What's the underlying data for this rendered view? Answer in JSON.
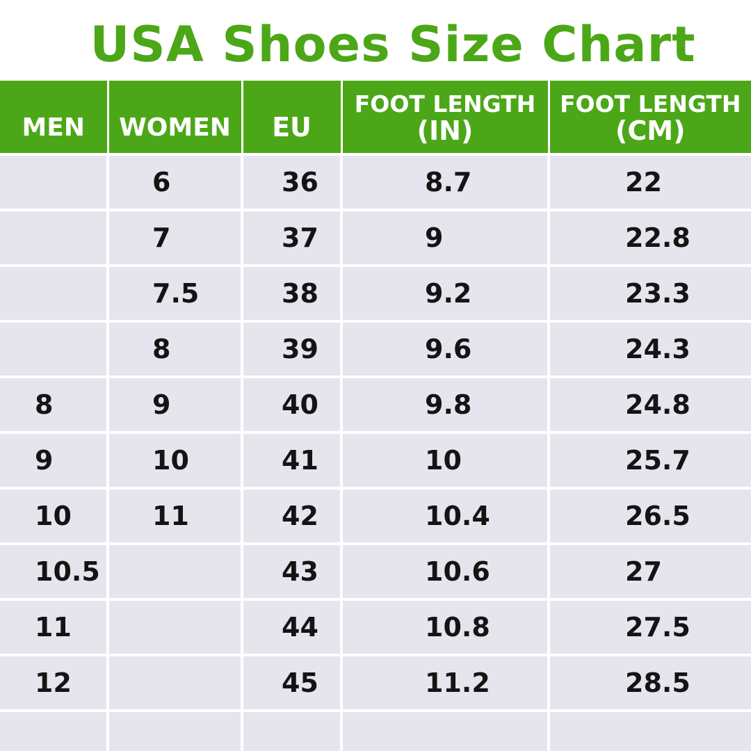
{
  "title": "USA Shoes Size Chart",
  "colors": {
    "accent": "#4ba717",
    "row_background": "#e6e5ee",
    "text": "#141414"
  },
  "table": {
    "headers": {
      "men": "MEN",
      "women": "WOMEN",
      "eu": "EU",
      "foot_length_in": {
        "line1": "FOOT LENGTH",
        "line2": "(IN)"
      },
      "foot_length_cm": {
        "line1": "FOOT LENGTH",
        "line2": "(CM)"
      }
    },
    "rows": [
      {
        "men": "",
        "women": "6",
        "eu": "36",
        "in": "8.7",
        "cm": "22"
      },
      {
        "men": "",
        "women": "7",
        "eu": "37",
        "in": "9",
        "cm": "22.8"
      },
      {
        "men": "",
        "women": "7.5",
        "eu": "38",
        "in": "9.2",
        "cm": "23.3"
      },
      {
        "men": "",
        "women": "8",
        "eu": "39",
        "in": "9.6",
        "cm": "24.3"
      },
      {
        "men": "8",
        "women": "9",
        "eu": "40",
        "in": "9.8",
        "cm": "24.8"
      },
      {
        "men": "9",
        "women": "10",
        "eu": "41",
        "in": "10",
        "cm": "25.7"
      },
      {
        "men": "10",
        "women": "11",
        "eu": "42",
        "in": "10.4",
        "cm": "26.5"
      },
      {
        "men": "10.5",
        "women": "",
        "eu": "43",
        "in": "10.6",
        "cm": "27"
      },
      {
        "men": "11",
        "women": "",
        "eu": "44",
        "in": "10.8",
        "cm": "27.5"
      },
      {
        "men": "12",
        "women": "",
        "eu": "45",
        "in": "11.2",
        "cm": "28.5"
      }
    ]
  }
}
